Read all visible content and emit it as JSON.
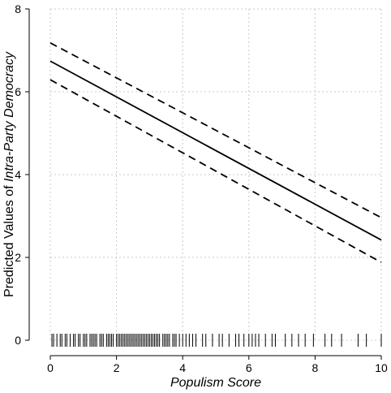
{
  "chart_data": {
    "type": "line",
    "xlabel": "Populism Score",
    "ylabel_prefix": "Predicted Values of ",
    "ylabel_emph": "Intra-Party Democracy",
    "xlim": [
      0,
      10
    ],
    "ylim": [
      0,
      8
    ],
    "xticks": [
      "0",
      "2",
      "4",
      "6",
      "8",
      "10"
    ],
    "yticks": [
      "0",
      "2",
      "4",
      "6",
      "8"
    ],
    "grid": true,
    "series": [
      {
        "role": "fit",
        "x": [
          0,
          10
        ],
        "y": [
          6.74,
          2.42
        ]
      },
      {
        "role": "upper",
        "x": [
          0,
          10
        ],
        "y": [
          7.18,
          2.96
        ]
      },
      {
        "role": "lower",
        "x": [
          0,
          10
        ],
        "y": [
          6.29,
          1.88
        ]
      }
    ],
    "rug": [
      0.05,
      0.1,
      0.2,
      0.3,
      0.35,
      0.45,
      0.5,
      0.6,
      0.7,
      0.75,
      0.85,
      0.9,
      1.0,
      1.05,
      1.1,
      1.2,
      1.25,
      1.3,
      1.35,
      1.4,
      1.5,
      1.55,
      1.6,
      1.7,
      1.75,
      1.8,
      1.85,
      1.9,
      2.0,
      2.05,
      2.1,
      2.15,
      2.2,
      2.25,
      2.3,
      2.35,
      2.4,
      2.45,
      2.5,
      2.55,
      2.6,
      2.65,
      2.7,
      2.75,
      2.8,
      2.85,
      2.9,
      2.95,
      3.0,
      3.05,
      3.1,
      3.15,
      3.2,
      3.25,
      3.3,
      3.4,
      3.45,
      3.5,
      3.55,
      3.6,
      3.7,
      3.75,
      3.8,
      3.9,
      4.0,
      4.1,
      4.2,
      4.3,
      4.4,
      4.6,
      4.7,
      4.9,
      5.1,
      5.2,
      5.4,
      5.6,
      5.7,
      5.85,
      6.0,
      6.1,
      6.2,
      6.3,
      6.5,
      6.7,
      6.8,
      7.1,
      7.3,
      7.5,
      7.7,
      7.95,
      8.3,
      8.5,
      8.8,
      9.3,
      9.55,
      10.0
    ]
  }
}
